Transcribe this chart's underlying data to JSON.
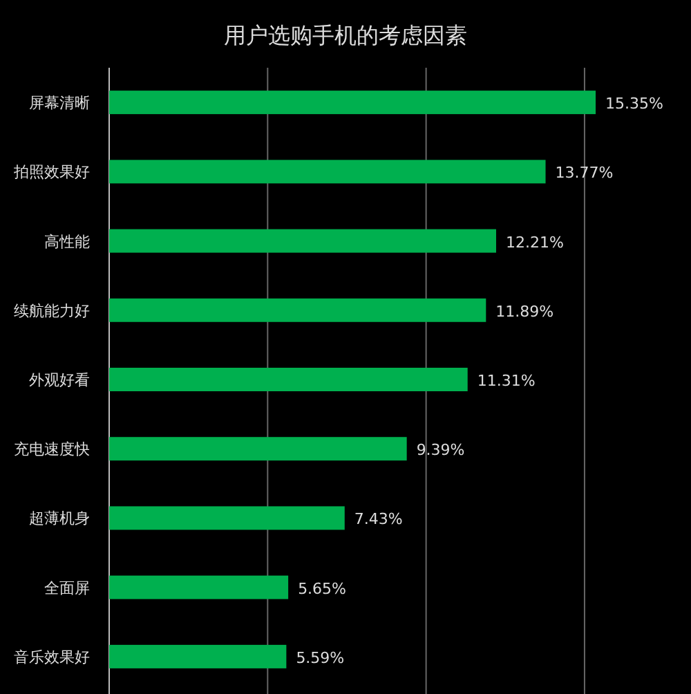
{
  "chart_data": {
    "type": "bar",
    "orientation": "horizontal",
    "title": "用户选购手机的考虑因素",
    "categories": [
      "屏幕清晰",
      "拍照效果好",
      "高性能",
      "续航能力好",
      "外观好看",
      "充电速度快",
      "超薄机身",
      "全面屏",
      "音乐效果好"
    ],
    "values": [
      15.35,
      13.77,
      12.21,
      11.89,
      11.31,
      9.39,
      7.43,
      5.65,
      5.59
    ],
    "value_labels": [
      "15.35%",
      "13.77%",
      "12.21%",
      "11.89%",
      "11.31%",
      "9.39%",
      "7.43%",
      "5.65%",
      "5.59%"
    ],
    "color": "#00b04f",
    "xticks": [
      {
        "value": 0,
        "label": null
      },
      {
        "value": 5,
        "label": null
      },
      {
        "value": 10,
        "label": null
      },
      {
        "value": 15,
        "label": null
      }
    ],
    "grid": "x",
    "tick_labels": "y"
  }
}
